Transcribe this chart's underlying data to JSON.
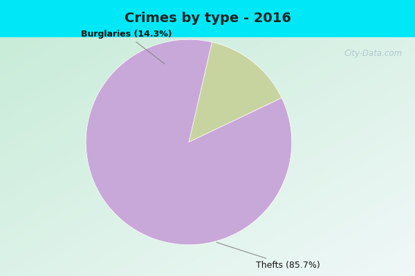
{
  "title": "Crimes by type - 2016",
  "slices": [
    {
      "label": "Burglaries (14.3%)",
      "value": 14.3,
      "color": "#c8d4a0"
    },
    {
      "label": "Thefts (85.7%)",
      "value": 85.7,
      "color": "#c8a8d8"
    }
  ],
  "title_bg_color": "#00e8f8",
  "chart_bg_top_left": "#d8f0e0",
  "chart_bg_bottom_right": "#f0f8f8",
  "title_fontsize": 14,
  "label_fontsize": 9,
  "watermark": "City-Data.com",
  "title_color": "#222222",
  "label_color": "#111111",
  "startangle": 77
}
